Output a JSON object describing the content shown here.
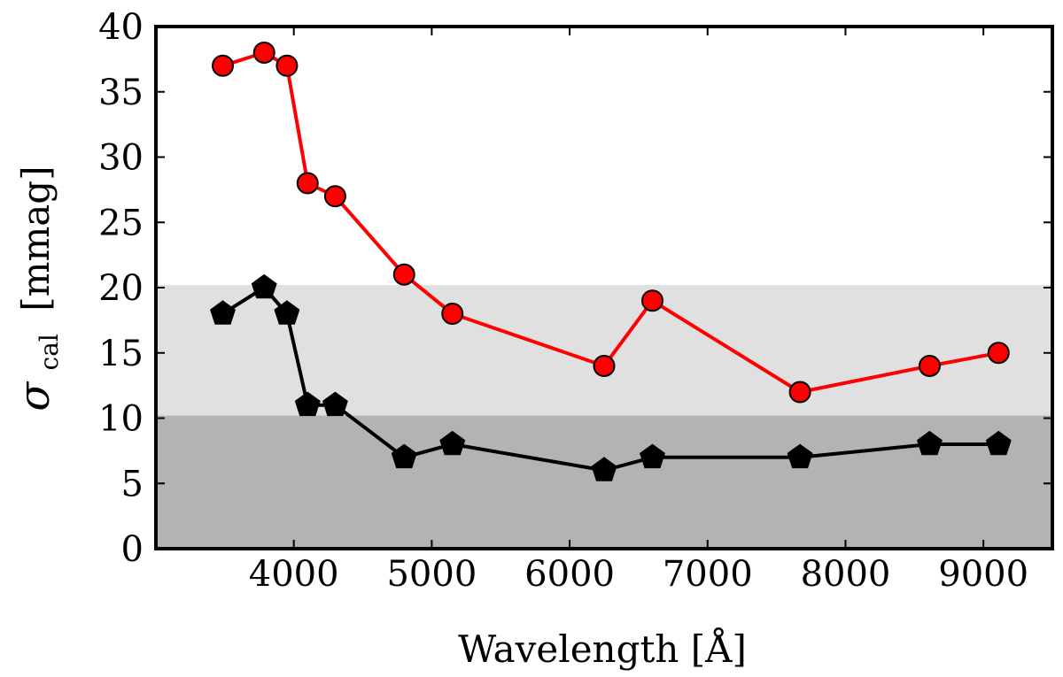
{
  "chart_data": {
    "type": "line",
    "xlabel": "Wavelength [Å]",
    "ylabel": {
      "symbol": "σ",
      "subscript": "cal",
      "unit": "[mmag]"
    },
    "xlim": [
      3000,
      9500
    ],
    "ylim": [
      0,
      40
    ],
    "x_ticks": [
      4000,
      5000,
      6000,
      7000,
      8000,
      9000
    ],
    "y_ticks": [
      0,
      5,
      10,
      15,
      20,
      25,
      30,
      35,
      40
    ],
    "grid": false,
    "bands": [
      {
        "y0": 0,
        "y1": 10.2,
        "color": "#b3b3b3"
      },
      {
        "y0": 10.2,
        "y1": 20.2,
        "color": "#e0e0e0"
      }
    ],
    "series": [
      {
        "color": "#ff0000",
        "marker": "circle",
        "x": [
          3485,
          3785,
          3950,
          4100,
          4300,
          4800,
          5150,
          6250,
          6600,
          7670,
          8610,
          9110
        ],
        "y": [
          37,
          38,
          37,
          28,
          27,
          21,
          18,
          14,
          19,
          12,
          14,
          15
        ]
      },
      {
        "color": "#000000",
        "marker": "pentagon",
        "x": [
          3485,
          3785,
          3950,
          4100,
          4300,
          4800,
          5150,
          6250,
          6600,
          7670,
          8610,
          9110
        ],
        "y": [
          18,
          20,
          18,
          11,
          11,
          7,
          8,
          6,
          7,
          7,
          8,
          8
        ]
      }
    ]
  }
}
